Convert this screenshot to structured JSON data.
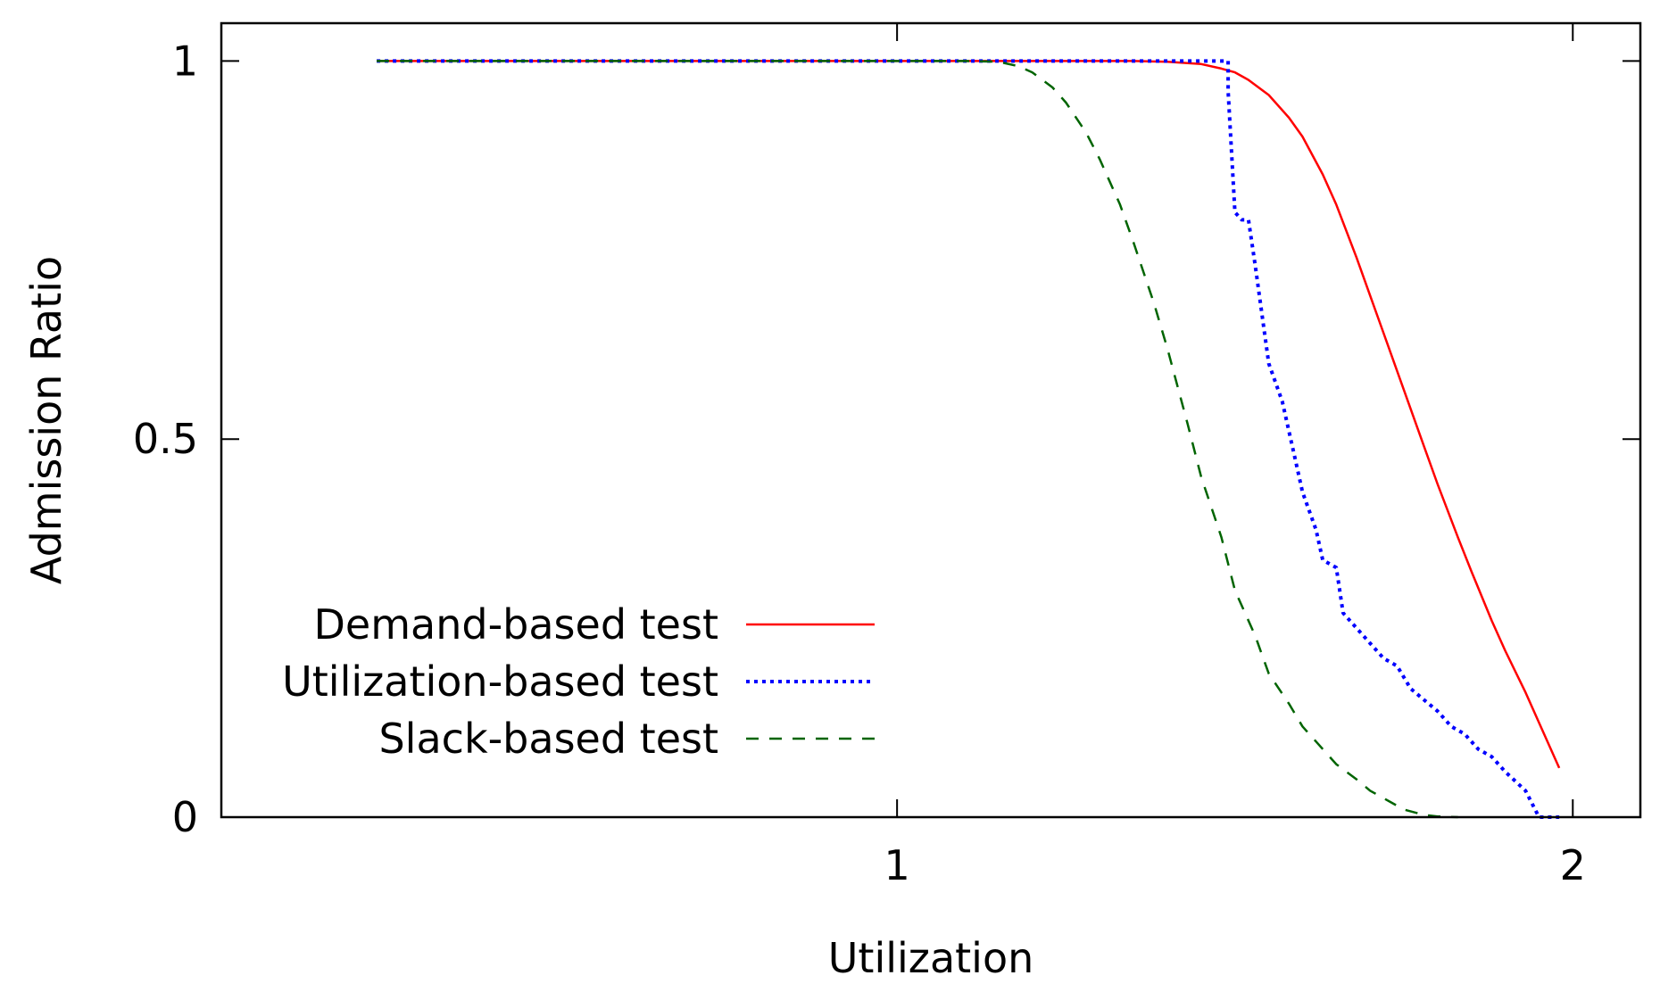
{
  "chart_data": {
    "type": "line",
    "title": "",
    "xlabel": "Utilization",
    "ylabel": "Admission Ratio",
    "xlim": [
      0.0,
      2.1
    ],
    "ylim": [
      0,
      1.05
    ],
    "xticks": [
      {
        "value": 1,
        "label": "1"
      },
      {
        "value": 2,
        "label": "2"
      }
    ],
    "yticks": [
      {
        "value": 0,
        "label": "0"
      },
      {
        "value": 0.5,
        "label": "0.5"
      },
      {
        "value": 1,
        "label": "1"
      }
    ],
    "grid": false,
    "legend_position": "bottom-left",
    "series": [
      {
        "name": "Demand-based test",
        "color": "#ff0000",
        "dash": "solid",
        "x": [
          0.23,
          0.4,
          0.6,
          0.8,
          1.0,
          1.1,
          1.2,
          1.3,
          1.35,
          1.4,
          1.45,
          1.48,
          1.5,
          1.52,
          1.55,
          1.58,
          1.6,
          1.63,
          1.65,
          1.68,
          1.7,
          1.72,
          1.75,
          1.78,
          1.8,
          1.83,
          1.85,
          1.88,
          1.9,
          1.93,
          1.95,
          1.98
        ],
        "values": [
          1,
          1,
          1,
          1,
          1,
          1,
          1,
          1,
          1,
          0.999,
          0.996,
          0.99,
          0.985,
          0.975,
          0.955,
          0.925,
          0.9,
          0.85,
          0.81,
          0.74,
          0.69,
          0.64,
          0.565,
          0.49,
          0.44,
          0.37,
          0.325,
          0.26,
          0.22,
          0.165,
          0.125,
          0.065
        ]
      },
      {
        "name": "Utilization-based test",
        "color": "#0000ff",
        "dash": "dotted",
        "x": [
          0.23,
          0.5,
          0.8,
          1.0,
          1.2,
          1.49,
          1.49,
          1.5,
          1.51,
          1.52,
          1.53,
          1.55,
          1.57,
          1.59,
          1.6,
          1.62,
          1.63,
          1.65,
          1.66,
          1.68,
          1.7,
          1.72,
          1.74,
          1.76,
          1.78,
          1.8,
          1.82,
          1.84,
          1.86,
          1.88,
          1.9,
          1.93,
          1.95,
          1.98
        ],
        "values": [
          1,
          1,
          1,
          1,
          1,
          1,
          0.96,
          0.8,
          0.79,
          0.79,
          0.73,
          0.6,
          0.55,
          0.47,
          0.43,
          0.38,
          0.34,
          0.33,
          0.27,
          0.25,
          0.23,
          0.21,
          0.2,
          0.17,
          0.155,
          0.14,
          0.12,
          0.11,
          0.09,
          0.08,
          0.06,
          0.035,
          0.0,
          0.0
        ]
      },
      {
        "name": "Slack-based test",
        "color": "#006400",
        "dash": "dashed",
        "x": [
          0.23,
          0.5,
          0.8,
          1.0,
          1.1,
          1.15,
          1.18,
          1.2,
          1.23,
          1.25,
          1.28,
          1.3,
          1.33,
          1.35,
          1.38,
          1.4,
          1.43,
          1.45,
          1.48,
          1.5,
          1.53,
          1.55,
          1.58,
          1.6,
          1.63,
          1.65,
          1.68,
          1.7,
          1.73,
          1.75,
          1.78,
          1.8,
          1.83
        ],
        "values": [
          1,
          1,
          1,
          1,
          1,
          0.999,
          0.993,
          0.985,
          0.965,
          0.945,
          0.905,
          0.87,
          0.81,
          0.76,
          0.68,
          0.62,
          0.52,
          0.45,
          0.37,
          0.3,
          0.24,
          0.19,
          0.15,
          0.12,
          0.09,
          0.07,
          0.05,
          0.035,
          0.02,
          0.01,
          0.003,
          0.001,
          0.0
        ]
      }
    ]
  }
}
